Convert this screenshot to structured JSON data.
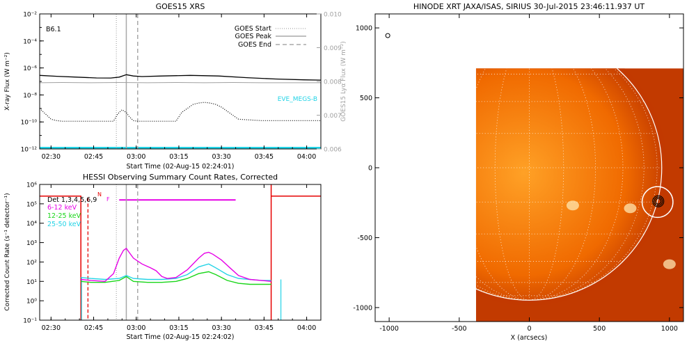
{
  "colors": {
    "axis": "#000000",
    "goes_long": "#000000",
    "goes_short": "#000000",
    "lya": "#a0a0a0",
    "eve": "#22d3e6",
    "marker": "#a8a8a8",
    "hessi_6_12": "#e600e6",
    "hessi_12_25": "#19d619",
    "hessi_25_50": "#22d3e6",
    "hessi_det": "#000000",
    "attenuator": "#e60000",
    "sun_dark": "#c23a00",
    "sun_mid": "#f06a00",
    "sun_light": "#ffa126",
    "limb": "#ffffff",
    "contour": "#000000"
  },
  "chart_data": [
    {
      "id": "goes",
      "type": "line",
      "title": "GOES15 XRS",
      "xlabel": "Start Time (02-Aug-15 02:24:01)",
      "ylabel": "X-ray Flux (W m⁻²)",
      "y2label": "GOES15 Lyα Flux (W m⁻²)",
      "xlim_minutes": [
        2.0,
        101.0
      ],
      "x_ticks": [
        "02:30",
        "02:45",
        "03:00",
        "03:15",
        "03:30",
        "03:45",
        "04:00"
      ],
      "x_tick_minutes": [
        6,
        21,
        36,
        51,
        66,
        81,
        96
      ],
      "y_scale": "log",
      "ylim_exp": [
        -12,
        -2
      ],
      "y_ticks": [
        "10⁻²",
        "10⁻⁴",
        "10⁻⁶",
        "10⁻⁸",
        "10⁻¹⁰",
        "10⁻¹²"
      ],
      "y_tick_exp": [
        -2,
        -4,
        -6,
        -8,
        -10,
        -12
      ],
      "y2lim": [
        0.006,
        0.01
      ],
      "y2_ticks": [
        "0.010",
        "0.009",
        "0.008",
        "0.007",
        "0.006"
      ],
      "y2_tick_values": [
        0.01,
        0.009,
        0.008,
        0.007,
        0.006
      ],
      "flare_label": "B6.1",
      "legend": [
        {
          "label": "GOES Start",
          "style": "dotted"
        },
        {
          "label": "GOES Peak",
          "style": "solid"
        },
        {
          "label": "GOES End",
          "style": "dashed"
        }
      ],
      "eve_label": "EVE_MEGS-B",
      "markers_minutes": {
        "start": 29.0,
        "peak": 32.5,
        "end": 36.5
      },
      "series": [
        {
          "band": "long",
          "x": [
            2,
            8,
            15,
            22,
            27,
            30,
            32.5,
            35,
            38,
            45,
            55,
            65,
            75,
            85,
            95,
            101
          ],
          "logy": [
            -6.55,
            -6.62,
            -6.68,
            -6.74,
            -6.75,
            -6.68,
            -6.5,
            -6.6,
            -6.64,
            -6.6,
            -6.55,
            -6.6,
            -6.72,
            -6.82,
            -6.88,
            -6.9
          ]
        },
        {
          "band": "short",
          "x": [
            2,
            4,
            6,
            8,
            10,
            20,
            28,
            29.5,
            31,
            32.5,
            33.5,
            35,
            36.5,
            38,
            50,
            52,
            54,
            56,
            58,
            60,
            62,
            64,
            66,
            68,
            70,
            72,
            80,
            90,
            101
          ],
          "logy": [
            -9.0,
            -9.4,
            -9.8,
            -9.9,
            -9.95,
            -9.95,
            -9.95,
            -9.4,
            -9.1,
            -9.3,
            -9.6,
            -9.9,
            -9.95,
            -9.95,
            -9.95,
            -9.3,
            -9.0,
            -8.7,
            -8.6,
            -8.55,
            -8.6,
            -8.7,
            -8.9,
            -9.2,
            -9.5,
            -9.8,
            -9.9,
            -9.9,
            -9.9
          ]
        },
        {
          "band": "lya",
          "x": [
            2,
            10,
            20,
            30,
            40,
            50,
            60,
            70,
            80,
            90,
            101
          ],
          "y": [
            0.00796,
            0.00797,
            0.00796,
            0.00797,
            0.00796,
            0.00797,
            0.00796,
            0.00797,
            0.00796,
            0.00796,
            0.00796
          ]
        }
      ]
    },
    {
      "id": "hessi",
      "type": "line",
      "title": "HESSI Observing Summary Count Rates, Corrected",
      "xlabel": "Start Time (02-Aug-15 02:24:02)",
      "ylabel": "Corrected Count Rate (s⁻¹ detector⁻¹)",
      "xlim_minutes": [
        2.0,
        101.0
      ],
      "x_ticks": [
        "02:30",
        "02:45",
        "03:00",
        "03:15",
        "03:30",
        "03:45",
        "04:00"
      ],
      "x_tick_minutes": [
        6,
        21,
        36,
        51,
        66,
        81,
        96
      ],
      "y_scale": "log",
      "ylim_exp": [
        -1,
        6
      ],
      "y_ticks": [
        "10⁶",
        "10⁵",
        "10⁴",
        "10³",
        "10²",
        "10¹",
        "10⁰",
        "10⁻¹"
      ],
      "y_tick_exp": [
        6,
        5,
        4,
        3,
        2,
        1,
        0,
        -1
      ],
      "detectors": "Det 1,3,4,5,6,9",
      "legend": [
        {
          "label": "6-12 keV",
          "color_key": "hessi_6_12"
        },
        {
          "label": "12-25 keV",
          "color_key": "hessi_12_25"
        },
        {
          "label": "25-50 keV",
          "color_key": "hessi_25_50"
        }
      ],
      "flags": {
        "N": "N",
        "F": "F"
      },
      "flag_minutes": {
        "N": 19.0,
        "F": 30.0,
        "F_end": 71.0
      },
      "markers_minutes": {
        "start": 29.0,
        "peak": 32.5,
        "end": 36.5,
        "night_end": 16.5
      },
      "attenuator": {
        "x_start": 2.0,
        "x_open": 16.5,
        "x_close": 83.5,
        "x_end": 101.0,
        "high_exp": 5.4
      },
      "series": [
        {
          "band": "6-12 keV",
          "x": [
            16.5,
            20,
            25,
            28,
            30,
            31.5,
            32.5,
            33.5,
            35,
            38,
            41,
            43,
            45,
            47,
            50,
            54,
            58,
            60,
            61.5,
            63,
            66,
            69,
            72,
            76,
            80,
            83.5
          ],
          "logy": [
            1.1,
            1.05,
            1.0,
            1.4,
            2.2,
            2.6,
            2.7,
            2.5,
            2.2,
            1.9,
            1.7,
            1.55,
            1.25,
            1.15,
            1.2,
            1.6,
            2.2,
            2.45,
            2.5,
            2.4,
            2.1,
            1.7,
            1.3,
            1.1,
            1.05,
            1.0
          ]
        },
        {
          "band": "12-25 keV",
          "x": [
            16.5,
            20,
            25,
            30,
            32.5,
            35,
            40,
            45,
            50,
            54,
            58,
            61.5,
            64,
            68,
            72,
            76,
            80,
            83.5
          ],
          "logy": [
            1.0,
            0.95,
            0.95,
            1.05,
            1.25,
            1.0,
            0.95,
            0.95,
            1.0,
            1.15,
            1.4,
            1.5,
            1.35,
            1.05,
            0.9,
            0.85,
            0.85,
            0.85
          ]
        },
        {
          "band": "25-50 keV",
          "x": [
            16.5,
            20,
            25,
            30,
            32.5,
            35,
            40,
            45,
            50,
            54,
            58,
            61.5,
            64,
            68,
            72,
            76,
            80,
            83.5
          ],
          "logy": [
            1.2,
            1.15,
            1.1,
            1.15,
            1.3,
            1.15,
            1.1,
            1.1,
            1.15,
            1.35,
            1.75,
            1.9,
            1.7,
            1.35,
            1.15,
            1.1,
            1.05,
            1.05
          ]
        }
      ]
    },
    {
      "id": "xrt",
      "type": "image",
      "title": "HINODE XRT JAXA/ISAS, SIRIUS 30-Jul-2015 23:46:11.937 UT",
      "xlabel": "X (arcsecs)",
      "xlim": [
        -1100,
        1100
      ],
      "ylim": [
        -1100,
        1100
      ],
      "x_ticks": [
        "-1000",
        "-500",
        "0",
        "500",
        "1000"
      ],
      "x_tick_values": [
        -1000,
        -500,
        0,
        500,
        1000
      ],
      "y_ticks": [
        "1000",
        "500",
        "0",
        "-500",
        "-1000"
      ],
      "y_tick_values": [
        1000,
        500,
        0,
        -500,
        -1000
      ],
      "solar_radius": 945,
      "image_extent": {
        "xmin": -380,
        "xmax": 1100,
        "ymin": -1100,
        "ymax": 710
      },
      "target_circle": {
        "x": 915,
        "y": -245,
        "r": 110
      },
      "target_contour": {
        "x": 920,
        "y": -240
      },
      "marker_small_circle": {
        "x": -1010,
        "y": 945
      },
      "bright_points": [
        {
          "x": 720,
          "y": -290
        },
        {
          "x": 310,
          "y": -270
        },
        {
          "x": 1000,
          "y": -690
        }
      ]
    }
  ]
}
